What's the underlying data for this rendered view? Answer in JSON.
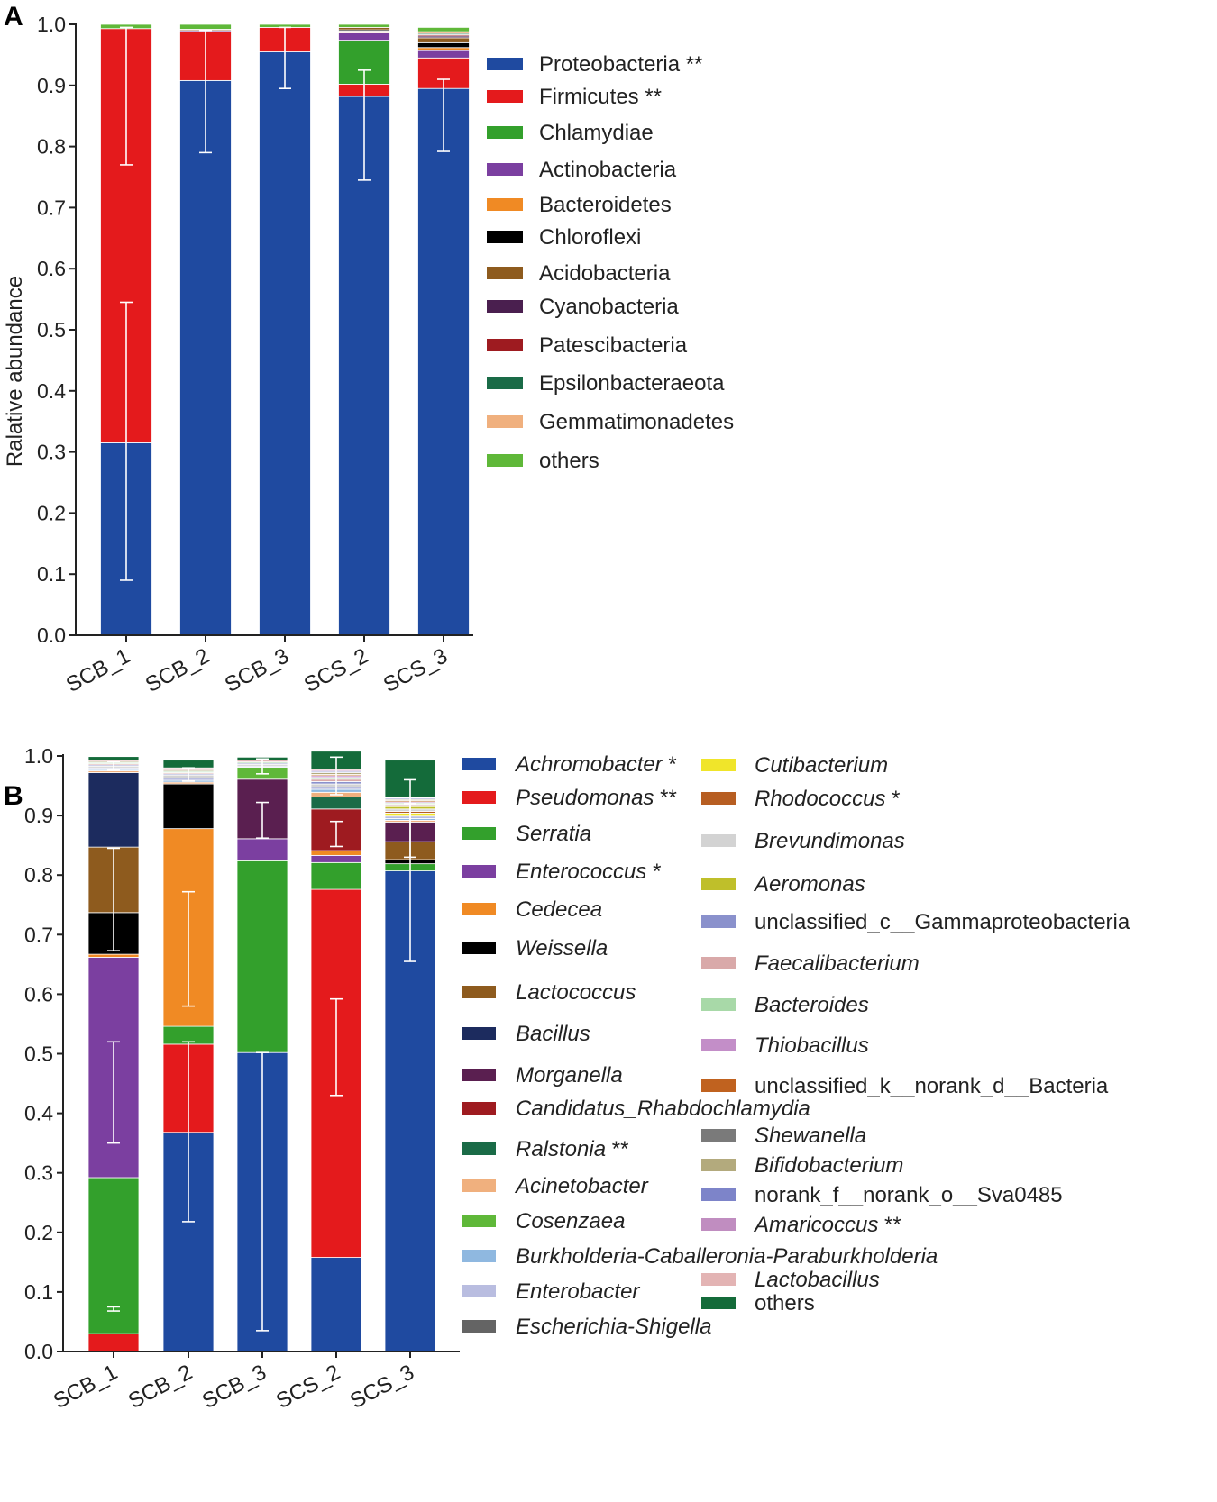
{
  "figure": {
    "background": "#ffffff"
  },
  "chart_data": [
    {
      "panel": "A",
      "type": "bar",
      "stacked": true,
      "ylabel": "Ralative abundance",
      "ylim": [
        0,
        1.0
      ],
      "yticks": [
        "0.0",
        "0.1",
        "0.2",
        "0.3",
        "0.4",
        "0.5",
        "0.6",
        "0.7",
        "0.8",
        "0.9",
        "1.0"
      ],
      "categories": [
        "SCB_1",
        "SCB_2",
        "SCB_3",
        "SCS_2",
        "SCS_3"
      ],
      "series": [
        {
          "name": "Proteobacteria **",
          "italic": false,
          "color": "#1f4aa0",
          "values": [
            0.315,
            0.908,
            0.955,
            0.882,
            0.895
          ]
        },
        {
          "name": "Firmicutes **",
          "italic": false,
          "color": "#e41a1c",
          "values": [
            0.678,
            0.08,
            0.04,
            0.02,
            0.05
          ]
        },
        {
          "name": "Chlamydiae",
          "italic": false,
          "color": "#33a02c",
          "values": [
            0.0,
            0.0,
            0.0,
            0.072,
            0.0
          ]
        },
        {
          "name": "Actinobacteria",
          "italic": false,
          "color": "#7b3fa0",
          "values": [
            0.0,
            0.002,
            0.0,
            0.012,
            0.012
          ]
        },
        {
          "name": "Bacteroidetes",
          "italic": false,
          "color": "#f08a24",
          "values": [
            0.0,
            0.0,
            0.0,
            0.003,
            0.005
          ]
        },
        {
          "name": "Chloroflexi",
          "italic": false,
          "color": "#000000",
          "values": [
            0.0,
            0.0,
            0.0,
            0.002,
            0.008
          ]
        },
        {
          "name": "Acidobacteria",
          "italic": false,
          "color": "#8e5b1e",
          "values": [
            0.0,
            0.002,
            0.0,
            0.004,
            0.008
          ]
        },
        {
          "name": "Cyanobacteria",
          "italic": false,
          "color": "#4a1f4f",
          "values": [
            0.0,
            0.0,
            0.0,
            0.0,
            0.003
          ]
        },
        {
          "name": "Patescibacteria",
          "italic": false,
          "color": "#9e1b20",
          "values": [
            0.0,
            0.0,
            0.0,
            0.0,
            0.002
          ]
        },
        {
          "name": "Epsilonbacteraeota",
          "italic": false,
          "color": "#1a6b47",
          "values": [
            0.0,
            0.0,
            0.0,
            0.0,
            0.002
          ]
        },
        {
          "name": "Gemmatimonadetes",
          "italic": false,
          "color": "#f0b07e",
          "values": [
            0.0,
            0.0,
            0.0,
            0.0,
            0.003
          ]
        },
        {
          "name": "others",
          "italic": false,
          "color": "#5fb839",
          "values": [
            0.007,
            0.008,
            0.005,
            0.005,
            0.007
          ]
        }
      ],
      "error_bars": [
        {
          "bar": 0,
          "series": 0,
          "low": 0.09,
          "high": 0.545
        },
        {
          "bar": 0,
          "series": 1,
          "low": 0.77,
          "high": 0.995
        },
        {
          "bar": 1,
          "series": 0,
          "low": 0.79,
          "high": 0.99
        },
        {
          "bar": 2,
          "series": 0,
          "low": 0.895,
          "high": 0.995
        },
        {
          "bar": 3,
          "series": 0,
          "low": 0.745,
          "high": 0.925
        },
        {
          "bar": 4,
          "series": 0,
          "low": 0.792,
          "high": 0.91
        }
      ]
    },
    {
      "panel": "B",
      "type": "bar",
      "stacked": true,
      "ylabel": "",
      "ylim": [
        0,
        1.0
      ],
      "yticks": [
        "0.0",
        "0.1",
        "0.2",
        "0.3",
        "0.4",
        "0.5",
        "0.6",
        "0.7",
        "0.8",
        "0.9",
        "1.0"
      ],
      "categories": [
        "SCB_1",
        "SCB_2",
        "SCB_3",
        "SCS_2",
        "SCS_3"
      ],
      "series": [
        {
          "name": "Achromobacter",
          "suffix": " *",
          "italic": true,
          "color": "#1f4aa0",
          "values": [
            0.0,
            0.368,
            0.502,
            0.158,
            0.807
          ]
        },
        {
          "name": "Pseudomonas",
          "suffix": " **",
          "italic": true,
          "color": "#e41a1c",
          "values": [
            0.03,
            0.148,
            0.0,
            0.618,
            0.0
          ]
        },
        {
          "name": "Serratia",
          "suffix": "",
          "italic": true,
          "color": "#33a02c",
          "values": [
            0.262,
            0.03,
            0.322,
            0.045,
            0.012
          ]
        },
        {
          "name": "Enterococcus",
          "suffix": " *",
          "italic": true,
          "color": "#7b3fa0",
          "values": [
            0.37,
            0.0,
            0.037,
            0.012,
            0.0
          ]
        },
        {
          "name": "Cedecea",
          "suffix": "",
          "italic": true,
          "color": "#f08a24",
          "values": [
            0.005,
            0.332,
            0.0,
            0.008,
            0.0
          ]
        },
        {
          "name": "Weissella",
          "suffix": "",
          "italic": true,
          "color": "#000000",
          "values": [
            0.07,
            0.075,
            0.0,
            0.0,
            0.007
          ]
        },
        {
          "name": "Lactococcus",
          "suffix": "",
          "italic": true,
          "color": "#8e5b1e",
          "values": [
            0.11,
            0.0,
            0.0,
            0.0,
            0.03
          ]
        },
        {
          "name": "Bacillus",
          "suffix": "",
          "italic": true,
          "color": "#1c2b5e",
          "values": [
            0.125,
            0.0,
            0.0,
            0.0,
            0.0
          ]
        },
        {
          "name": "Morganella",
          "suffix": "",
          "italic": true,
          "color": "#5a1f50",
          "values": [
            0.0,
            0.0,
            0.1,
            0.0,
            0.033
          ]
        },
        {
          "name": "Candidatus_Rhabdochlamydia",
          "suffix": "",
          "italic": true,
          "color": "#9e1b20",
          "values": [
            0.0,
            0.0,
            0.0,
            0.07,
            0.0
          ]
        },
        {
          "name": "Ralstonia",
          "suffix": " **",
          "italic": true,
          "color": "#1a6b47",
          "values": [
            0.0,
            0.0,
            0.0,
            0.02,
            0.0
          ]
        },
        {
          "name": "Acinetobacter",
          "suffix": "",
          "italic": true,
          "color": "#f0b07e",
          "values": [
            0.003,
            0.003,
            0.0,
            0.008,
            0.003
          ]
        },
        {
          "name": "Cosenzaea",
          "suffix": "",
          "italic": true,
          "color": "#5fb839",
          "values": [
            0.0,
            0.0,
            0.02,
            0.0,
            0.0
          ]
        },
        {
          "name": "Burkholderia-Caballeronia-Paraburkholderia",
          "suffix": "",
          "italic": true,
          "color": "#8fb8e0",
          "values": [
            0.002,
            0.003,
            0.0,
            0.005,
            0.003
          ]
        },
        {
          "name": "Enterobacter",
          "suffix": "",
          "italic": true,
          "color": "#b9bde0",
          "values": [
            0.003,
            0.004,
            0.002,
            0.004,
            0.004
          ]
        },
        {
          "name": "Escherichia-Shigella",
          "suffix": "",
          "italic": true,
          "color": "#646464",
          "values": [
            0.0,
            0.0,
            0.0,
            0.0,
            0.0
          ]
        },
        {
          "name": "Cutibacterium",
          "suffix": "",
          "italic": true,
          "color": "#f0e52a",
          "values": [
            0.0,
            0.0,
            0.0,
            0.0,
            0.005
          ]
        },
        {
          "name": "Rhodococcus",
          "suffix": " *",
          "italic": true,
          "color": "#b75e22",
          "values": [
            0.0,
            0.0,
            0.0,
            0.0,
            0.003
          ]
        },
        {
          "name": "Brevundimonas",
          "suffix": "",
          "italic": true,
          "color": "#d3d3d3",
          "values": [
            0.003,
            0.005,
            0.003,
            0.005,
            0.004
          ]
        },
        {
          "name": "Aeromonas",
          "suffix": "",
          "italic": true,
          "color": "#bfbf2a",
          "values": [
            0.0,
            0.0,
            0.0,
            0.0,
            0.004
          ]
        },
        {
          "name": "unclassified_c__Gammaproteobacteria",
          "suffix": "",
          "italic": false,
          "color": "#8a91cc",
          "values": [
            0.002,
            0.002,
            0.002,
            0.004,
            0.002
          ]
        },
        {
          "name": "Faecalibacterium",
          "suffix": "",
          "italic": true,
          "color": "#d9a9a9",
          "values": [
            0.002,
            0.002,
            0.0,
            0.004,
            0.002
          ]
        },
        {
          "name": "Bacteroides",
          "suffix": "",
          "italic": true,
          "color": "#a8d9a8",
          "values": [
            0.002,
            0.002,
            0.002,
            0.003,
            0.002
          ]
        },
        {
          "name": "Thiobacillus",
          "suffix": "",
          "italic": true,
          "color": "#c38ec8",
          "values": [
            0.0,
            0.0,
            0.0,
            0.003,
            0.002
          ]
        },
        {
          "name": "unclassified_k__norank_d__Bacteria",
          "suffix": "",
          "italic": false,
          "color": "#c0621f",
          "values": [
            0.0,
            0.0,
            0.0,
            0.002,
            0.002
          ]
        },
        {
          "name": "Shewanella",
          "suffix": "",
          "italic": true,
          "color": "#7a7a7a",
          "values": [
            0.0,
            0.0,
            0.0,
            0.0,
            0.0
          ]
        },
        {
          "name": "Bifidobacterium",
          "suffix": "",
          "italic": true,
          "color": "#b3aa7d",
          "values": [
            0.002,
            0.002,
            0.0,
            0.003,
            0.002
          ]
        },
        {
          "name": "norank_f__norank_o__Sva0485",
          "suffix": "",
          "italic": false,
          "color": "#7d84c9",
          "values": [
            0.0,
            0.0,
            0.0,
            0.002,
            0.002
          ]
        },
        {
          "name": "Amaricoccus",
          "suffix": " **",
          "italic": true,
          "color": "#c08dc0",
          "values": [
            0.0,
            0.0,
            0.0,
            0.002,
            0.0
          ]
        },
        {
          "name": "Lactobacillus",
          "suffix": "",
          "italic": true,
          "color": "#e3b4b4",
          "values": [
            0.002,
            0.004,
            0.003,
            0.002,
            0.001
          ]
        },
        {
          "name": "others",
          "suffix": "",
          "italic": false,
          "color": "#146b3a",
          "values": [
            0.006,
            0.013,
            0.005,
            0.03,
            0.063
          ]
        }
      ],
      "error_bars": [
        {
          "bar": 0,
          "series": 1,
          "low": 0.068,
          "high": 0.075
        },
        {
          "bar": 0,
          "series": 2,
          "low": 0.35,
          "high": 0.52
        },
        {
          "bar": 0,
          "series": 3,
          "low": 0.673,
          "high": 0.845
        },
        {
          "bar": 0,
          "series": 30,
          "low": 0.976,
          "high": 0.99
        },
        {
          "bar": 1,
          "series": 0,
          "low": 0.218,
          "high": 0.52
        },
        {
          "bar": 1,
          "series": 4,
          "low": 0.58,
          "high": 0.772
        },
        {
          "bar": 1,
          "series": 30,
          "low": 0.958,
          "high": 0.98
        },
        {
          "bar": 2,
          "series": 0,
          "low": 0.035,
          "high": 0.502
        },
        {
          "bar": 2,
          "series": 2,
          "low": 0.862,
          "high": 0.922
        },
        {
          "bar": 2,
          "series": 30,
          "low": 0.97,
          "high": 0.995
        },
        {
          "bar": 3,
          "series": 1,
          "low": 0.43,
          "high": 0.592
        },
        {
          "bar": 3,
          "series": 9,
          "low": 0.848,
          "high": 0.89
        },
        {
          "bar": 3,
          "series": 30,
          "low": 0.935,
          "high": 0.998
        },
        {
          "bar": 4,
          "series": 0,
          "low": 0.655,
          "high": 0.96
        },
        {
          "bar": 4,
          "series": 30,
          "low": 0.83,
          "high": 0.92
        }
      ]
    }
  ]
}
